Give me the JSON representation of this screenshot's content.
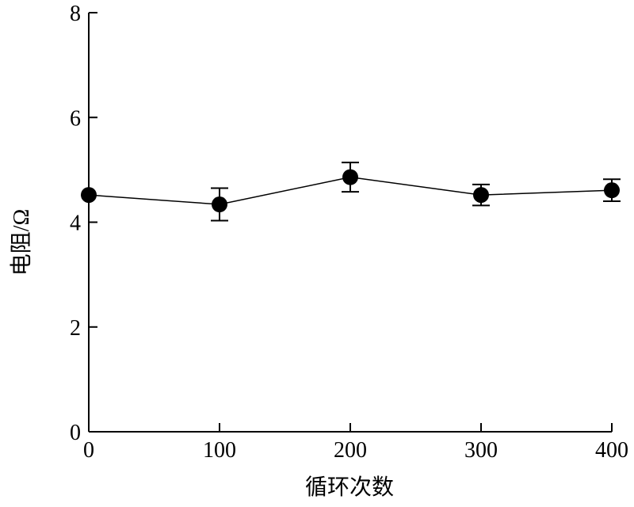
{
  "chart_data": {
    "type": "scatter",
    "title": "",
    "xlabel": "循环次数",
    "ylabel": "电阻/Ω",
    "xlim": [
      0,
      400
    ],
    "ylim": [
      0,
      8
    ],
    "x_ticks": [
      "0",
      "100",
      "200",
      "300",
      "400"
    ],
    "y_ticks": [
      "0",
      "2",
      "4",
      "6",
      "8"
    ],
    "grid": false,
    "legend": "none",
    "marker_color": "#000000",
    "line_color": "#000000",
    "series": [
      {
        "x": [
          0,
          100,
          200,
          300,
          400
        ],
        "y": [
          4.52,
          4.34,
          4.86,
          4.52,
          4.61
        ],
        "error": [
          0.0,
          0.31,
          0.28,
          0.2,
          0.21
        ]
      }
    ]
  }
}
